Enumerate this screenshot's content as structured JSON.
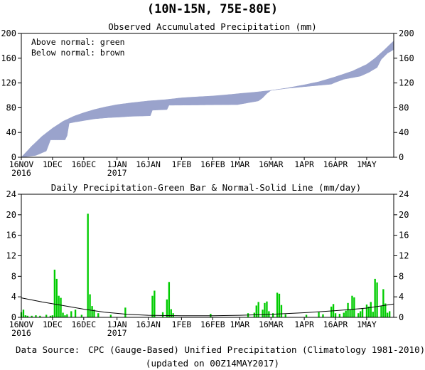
{
  "region_title": "(10N-15N, 75E-80E)",
  "footer": {
    "source_label": "Data Source:",
    "source_text": "CPC (Gauge-Based) Unified Precipitation (Climatology 1981-2010)",
    "updated": "(updated on 00Z14MAY2017)"
  },
  "colors": {
    "accum_band": "#9aa3cc",
    "daily_bar": "#00cc00",
    "normal_line": "#000000",
    "source_label": "#5a5ad0"
  },
  "chart_data": [
    {
      "type": "area",
      "title": "Observed Accumulated Precipitation (mm)",
      "legend": [
        "Above normal: green",
        "Below normal: brown"
      ],
      "legend_position": "top-left",
      "x_range": [
        "2016-11-16",
        "2017-05-14"
      ],
      "x_ticks": [
        {
          "date": "2016-11-16",
          "l1": "16NOV",
          "l2": "2016"
        },
        {
          "date": "2016-12-01",
          "l1": "1DEC",
          "l2": ""
        },
        {
          "date": "2016-12-16",
          "l1": "16DEC",
          "l2": ""
        },
        {
          "date": "2017-01-01",
          "l1": "1JAN",
          "l2": "2017"
        },
        {
          "date": "2017-01-16",
          "l1": "16JAN",
          "l2": ""
        },
        {
          "date": "2017-02-01",
          "l1": "1FEB",
          "l2": ""
        },
        {
          "date": "2017-02-16",
          "l1": "16FEB",
          "l2": ""
        },
        {
          "date": "2017-03-01",
          "l1": "1MAR",
          "l2": ""
        },
        {
          "date": "2017-03-16",
          "l1": "16MAR",
          "l2": ""
        },
        {
          "date": "2017-04-01",
          "l1": "1APR",
          "l2": ""
        },
        {
          "date": "2017-04-16",
          "l1": "16APR",
          "l2": ""
        },
        {
          "date": "2017-05-01",
          "l1": "1MAY",
          "l2": ""
        }
      ],
      "ylim": [
        0,
        200
      ],
      "y_ticks": [
        0,
        40,
        80,
        120,
        160,
        200
      ],
      "series": [
        {
          "name": "Normal",
          "points": [
            [
              "2016-11-16",
              0
            ],
            [
              "2016-11-21",
              18
            ],
            [
              "2016-11-26",
              34
            ],
            [
              "2016-12-01",
              47
            ],
            [
              "2016-12-06",
              58
            ],
            [
              "2016-12-11",
              66
            ],
            [
              "2016-12-16",
              72
            ],
            [
              "2016-12-21",
              77
            ],
            [
              "2016-12-26",
              81
            ],
            [
              "2017-01-01",
              85
            ],
            [
              "2017-01-08",
              88
            ],
            [
              "2017-01-16",
              91
            ],
            [
              "2017-01-24",
              93
            ],
            [
              "2017-02-01",
              96
            ],
            [
              "2017-02-08",
              97.5
            ],
            [
              "2017-02-16",
              99
            ],
            [
              "2017-02-23",
              101
            ],
            [
              "2017-03-01",
              103
            ],
            [
              "2017-03-08",
              105
            ],
            [
              "2017-03-16",
              108
            ],
            [
              "2017-03-24",
              112
            ],
            [
              "2017-04-01",
              117
            ],
            [
              "2017-04-08",
              122
            ],
            [
              "2017-04-16",
              130
            ],
            [
              "2017-04-24",
              139
            ],
            [
              "2017-05-01",
              150
            ],
            [
              "2017-05-05",
              160
            ],
            [
              "2017-05-09",
              172
            ],
            [
              "2017-05-14",
              188
            ]
          ]
        },
        {
          "name": "Observed",
          "points": [
            [
              "2016-11-16",
              0
            ],
            [
              "2016-11-23",
              3
            ],
            [
              "2016-11-28",
              10
            ],
            [
              "2016-11-30",
              28
            ],
            [
              "2016-12-07",
              28
            ],
            [
              "2016-12-08",
              35
            ],
            [
              "2016-12-09",
              55
            ],
            [
              "2016-12-12",
              57
            ],
            [
              "2016-12-14",
              58
            ],
            [
              "2016-12-21",
              62
            ],
            [
              "2016-12-28",
              64
            ],
            [
              "2017-01-03",
              65
            ],
            [
              "2017-01-07",
              66
            ],
            [
              "2017-01-17",
              67
            ],
            [
              "2017-01-18",
              76
            ],
            [
              "2017-01-25",
              77
            ],
            [
              "2017-01-26",
              84
            ],
            [
              "2017-02-28",
              85
            ],
            [
              "2017-03-05",
              88
            ],
            [
              "2017-03-10",
              91
            ],
            [
              "2017-03-12",
              96
            ],
            [
              "2017-03-14",
              103
            ],
            [
              "2017-03-16",
              108
            ],
            [
              "2017-03-23",
              111
            ],
            [
              "2017-04-01",
              114
            ],
            [
              "2017-04-14",
              118
            ],
            [
              "2017-04-16",
              121
            ],
            [
              "2017-04-20",
              126
            ],
            [
              "2017-04-28",
              131
            ],
            [
              "2017-05-02",
              137
            ],
            [
              "2017-05-06",
              145
            ],
            [
              "2017-05-08",
              158
            ],
            [
              "2017-05-11",
              168
            ],
            [
              "2017-05-14",
              174
            ]
          ]
        }
      ]
    },
    {
      "type": "bar",
      "title": "Daily Precipitation-Green Bar & Normal-Solid Line (mm/day)",
      "x_range": [
        "2016-11-16",
        "2017-05-14"
      ],
      "ylim": [
        0,
        24
      ],
      "y_ticks": [
        0,
        4,
        8,
        12,
        16,
        20,
        24
      ],
      "series": [
        {
          "name": "Daily Precipitation",
          "points": [
            [
              "2016-11-16",
              1.0
            ],
            [
              "2016-11-17",
              1.5
            ],
            [
              "2016-11-18",
              0.4
            ],
            [
              "2016-11-19",
              0.3
            ],
            [
              "2016-11-21",
              0.3
            ],
            [
              "2016-11-23",
              0.4
            ],
            [
              "2016-11-25",
              0.3
            ],
            [
              "2016-11-28",
              0.5
            ],
            [
              "2016-11-30",
              0.3
            ],
            [
              "2016-12-01",
              0.4
            ],
            [
              "2016-12-02",
              9.3
            ],
            [
              "2016-12-03",
              7.5
            ],
            [
              "2016-12-04",
              4.2
            ],
            [
              "2016-12-05",
              3.8
            ],
            [
              "2016-12-06",
              0.9
            ],
            [
              "2016-12-07",
              0.4
            ],
            [
              "2016-12-08",
              0.6
            ],
            [
              "2016-12-10",
              1.2
            ],
            [
              "2016-12-12",
              1.5
            ],
            [
              "2016-12-15",
              0.5
            ],
            [
              "2016-12-18",
              20.2
            ],
            [
              "2016-12-19",
              4.5
            ],
            [
              "2016-12-20",
              2.2
            ],
            [
              "2016-12-21",
              1.5
            ],
            [
              "2016-12-23",
              0.8
            ],
            [
              "2016-12-29",
              0.5
            ],
            [
              "2017-01-05",
              1.9
            ],
            [
              "2017-01-18",
              4.2
            ],
            [
              "2017-01-19",
              5.2
            ],
            [
              "2017-01-23",
              1.0
            ],
            [
              "2017-01-25",
              3.5
            ],
            [
              "2017-01-26",
              6.9
            ],
            [
              "2017-01-27",
              1.6
            ],
            [
              "2017-01-28",
              0.8
            ],
            [
              "2017-02-15",
              0.7
            ],
            [
              "2017-03-05",
              0.8
            ],
            [
              "2017-03-08",
              0.9
            ],
            [
              "2017-03-09",
              2.3
            ],
            [
              "2017-03-10",
              3.0
            ],
            [
              "2017-03-12",
              1.5
            ],
            [
              "2017-03-13",
              2.8
            ],
            [
              "2017-03-14",
              3.1
            ],
            [
              "2017-03-15",
              1.2
            ],
            [
              "2017-03-17",
              0.8
            ],
            [
              "2017-03-19",
              4.8
            ],
            [
              "2017-03-20",
              4.6
            ],
            [
              "2017-03-21",
              2.4
            ],
            [
              "2017-03-23",
              0.6
            ],
            [
              "2017-04-02",
              0.5
            ],
            [
              "2017-04-08",
              1.0
            ],
            [
              "2017-04-10",
              0.6
            ],
            [
              "2017-04-14",
              2.1
            ],
            [
              "2017-04-15",
              2.6
            ],
            [
              "2017-04-16",
              0.8
            ],
            [
              "2017-04-18",
              0.7
            ],
            [
              "2017-04-20",
              0.9
            ],
            [
              "2017-04-21",
              1.3
            ],
            [
              "2017-04-22",
              2.8
            ],
            [
              "2017-04-23",
              1.6
            ],
            [
              "2017-04-24",
              4.2
            ],
            [
              "2017-04-25",
              3.9
            ],
            [
              "2017-04-27",
              0.8
            ],
            [
              "2017-04-28",
              1.2
            ],
            [
              "2017-04-29",
              1.8
            ],
            [
              "2017-05-01",
              2.5
            ],
            [
              "2017-05-02",
              2.1
            ],
            [
              "2017-05-03",
              3.0
            ],
            [
              "2017-05-04",
              1.1
            ],
            [
              "2017-05-05",
              7.5
            ],
            [
              "2017-05-06",
              6.8
            ],
            [
              "2017-05-08",
              2.2
            ],
            [
              "2017-05-09",
              5.5
            ],
            [
              "2017-05-10",
              2.7
            ],
            [
              "2017-05-11",
              0.9
            ],
            [
              "2017-05-12",
              1.2
            ]
          ]
        },
        {
          "name": "Normal",
          "points": [
            [
              "2016-11-16",
              3.8
            ],
            [
              "2016-11-26",
              3.0
            ],
            [
              "2016-12-06",
              2.3
            ],
            [
              "2016-12-16",
              1.6
            ],
            [
              "2016-12-26",
              1.0
            ],
            [
              "2017-01-06",
              0.6
            ],
            [
              "2017-01-16",
              0.4
            ],
            [
              "2017-02-01",
              0.3
            ],
            [
              "2017-02-16",
              0.3
            ],
            [
              "2017-03-01",
              0.4
            ],
            [
              "2017-03-16",
              0.6
            ],
            [
              "2017-04-01",
              0.9
            ],
            [
              "2017-04-16",
              1.3
            ],
            [
              "2017-05-01",
              1.8
            ],
            [
              "2017-05-14",
              2.6
            ]
          ]
        }
      ]
    }
  ]
}
